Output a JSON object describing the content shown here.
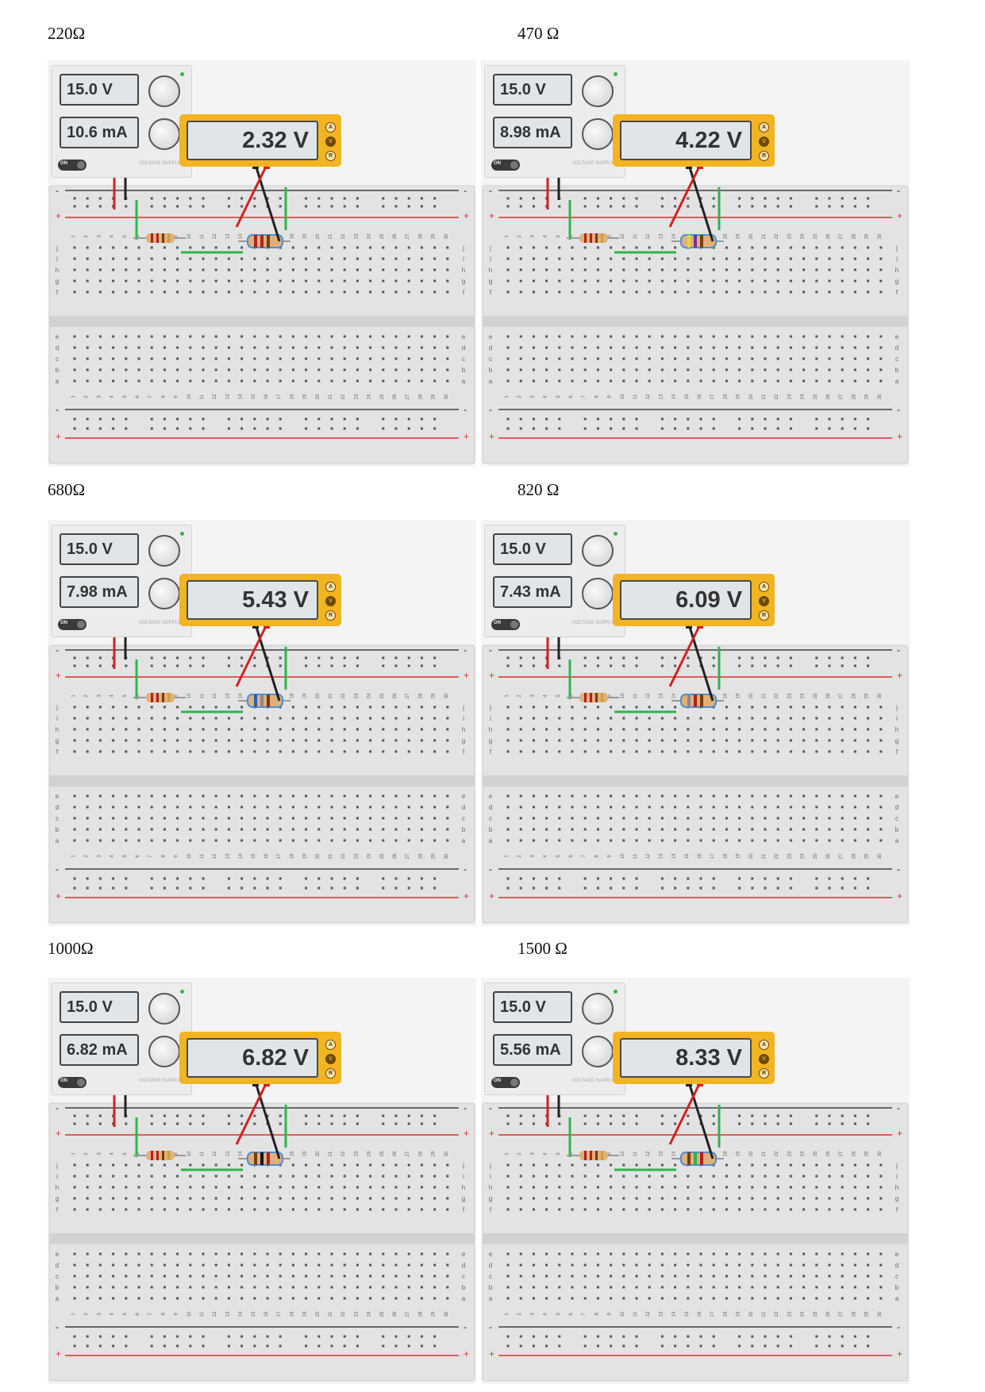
{
  "panels": [
    {
      "label": "220Ω",
      "voltage": "15.0 V",
      "current": "10.6 mA",
      "reading": "2.32 V"
    },
    {
      "label": "470 Ω",
      "voltage": "15.0 V",
      "current": "8.98 mA",
      "reading": "4.22 V"
    },
    {
      "label": "680Ω",
      "voltage": "15.0 V",
      "current": "7.98 mA",
      "reading": "5.43 V"
    },
    {
      "label": "820 Ω",
      "voltage": "15.0 V",
      "current": "7.43 mA",
      "reading": "6.09 V"
    },
    {
      "label": "1000Ω",
      "voltage": "15.0 V",
      "current": "6.82 mA",
      "reading": "6.82 V"
    },
    {
      "label": "1500 Ω",
      "voltage": "15.0 V",
      "current": "5.56 mA",
      "reading": "8.33 V"
    }
  ],
  "supply": {
    "on_label": "ON",
    "name": "VOLTAGE SUPPLY"
  },
  "multimeter": {
    "mode_a": "A",
    "mode_v": "V",
    "mode_r": "R"
  },
  "breadboard": {
    "columns": [
      "1",
      "2",
      "3",
      "4",
      "5",
      "6",
      "7",
      "8",
      "9",
      "10",
      "11",
      "12",
      "13",
      "14",
      "15",
      "16",
      "17",
      "18",
      "19",
      "20",
      "21",
      "22",
      "23",
      "24",
      "25",
      "26",
      "27",
      "28",
      "29",
      "30"
    ],
    "rows_top": [
      "j",
      "i",
      "h",
      "g",
      "f"
    ],
    "rows_bottom": [
      "e",
      "d",
      "c",
      "b",
      "a"
    ],
    "rail_minus": "-",
    "rail_plus": "+"
  },
  "colors": {
    "wire_red": "#d42020",
    "wire_black": "#222222",
    "wire_green": "#2db54a",
    "meter_body": "#f3b422",
    "rail_red": "#d93030"
  }
}
